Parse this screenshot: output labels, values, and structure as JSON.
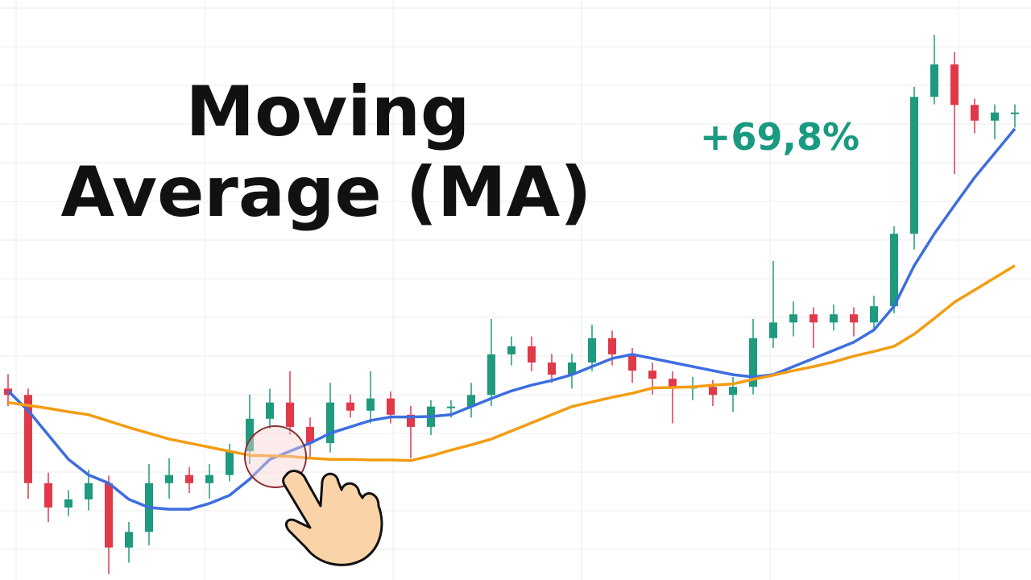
{
  "chart_data": {
    "type": "candlestick",
    "title": [
      "Moving",
      "Average (MA)"
    ],
    "annotation": "+69,8%",
    "ylim": [
      0,
      100
    ],
    "up_color": "#1f9a7f",
    "down_color": "#e0394a",
    "open": [
      33.0,
      31.9,
      16.7,
      12.5,
      13.9,
      16.7,
      5.6,
      8.3,
      16.7,
      18.1,
      16.7,
      18.1,
      22.2,
      27.8,
      30.6,
      26.4,
      23.6,
      30.6,
      29.2,
      31.3,
      28.5,
      26.4,
      29.9,
      29.9,
      31.9,
      38.9,
      40.3,
      37.5,
      35.4,
      37.5,
      41.7,
      38.9,
      36.1,
      34.7,
      33.3,
      33.3,
      31.9,
      33.3,
      41.7,
      44.4,
      45.8,
      44.4,
      45.8,
      44.4,
      47.2,
      59.7,
      83.3,
      88.9,
      81.9,
      79.2,
      80.6
    ],
    "high": [
      35.5,
      33,
      18.5,
      15.5,
      19,
      18,
      10,
      20,
      21,
      19.5,
      20,
      23.5,
      32,
      33,
      36,
      28,
      34,
      32,
      36,
      32.5,
      30,
      31,
      31,
      34,
      45,
      42,
      42,
      39,
      39,
      44,
      43,
      40,
      37.5,
      36,
      35,
      34.5,
      35,
      45,
      55,
      48,
      47,
      47.5,
      47,
      49,
      61,
      85,
      94,
      91,
      83,
      82,
      82
    ],
    "low": [
      30,
      14,
      10,
      11,
      12,
      1,
      3,
      6,
      14,
      15,
      14,
      17,
      20,
      26,
      25,
      21,
      22,
      28,
      27,
      27,
      21,
      25,
      28,
      28,
      30,
      37,
      36,
      34,
      33,
      36,
      37,
      34,
      32,
      27,
      31,
      30,
      29,
      32,
      40,
      42,
      40,
      43,
      42,
      43,
      46,
      57,
      82,
      70,
      77,
      76,
      78
    ],
    "close": [
      31.9,
      16.7,
      12.5,
      13.9,
      16.7,
      5.6,
      8.3,
      16.7,
      18.1,
      16.7,
      18.1,
      22.2,
      27.8,
      30.6,
      26.4,
      23.6,
      30.6,
      29.2,
      31.3,
      28.5,
      26.4,
      29.9,
      29.9,
      31.9,
      38.9,
      40.3,
      37.5,
      35.4,
      37.5,
      41.7,
      38.9,
      36.1,
      34.7,
      33.3,
      33.3,
      31.9,
      33.3,
      41.7,
      44.4,
      45.8,
      44.4,
      45.8,
      44.4,
      47.2,
      59.7,
      83.3,
      88.9,
      81.9,
      79.2,
      80.6,
      80.6
    ],
    "series": [
      {
        "color": "#3d6ee0",
        "values": [
          32.6,
          29.2,
          25.0,
          20.8,
          18.1,
          16.7,
          13.9,
          12.5,
          12.2,
          12.2,
          13.2,
          14.6,
          17.4,
          20.8,
          22.2,
          23.6,
          25.3,
          26.4,
          27.5,
          28.1,
          28.1,
          28.2,
          28.5,
          29.9,
          31.3,
          32.6,
          33.6,
          34.4,
          35.4,
          36.8,
          38.2,
          38.9,
          38.2,
          37.5,
          36.8,
          36.1,
          35.4,
          35.0,
          35.4,
          36.8,
          38.2,
          39.6,
          41.0,
          43.1,
          47.2,
          54.2,
          59.7,
          64.6,
          69.4,
          73.6,
          77.8
        ]
      },
      {
        "color": "#f39c12",
        "values": [
          30.6,
          30.1,
          29.6,
          29.0,
          28.5,
          27.4,
          26.3,
          25.3,
          24.3,
          23.6,
          22.9,
          22.2,
          21.5,
          21.4,
          21.3,
          21.0,
          20.8,
          20.8,
          20.7,
          20.7,
          20.6,
          21.4,
          22.4,
          23.3,
          24.3,
          25.7,
          27.1,
          28.5,
          29.9,
          30.7,
          31.5,
          32.2,
          33.1,
          33.2,
          33.3,
          33.6,
          33.8,
          34.6,
          35.3,
          36.1,
          36.8,
          37.6,
          38.6,
          39.4,
          40.3,
          42.4,
          45.1,
          47.9,
          50.0,
          52.1,
          54.2
        ]
      }
    ]
  }
}
